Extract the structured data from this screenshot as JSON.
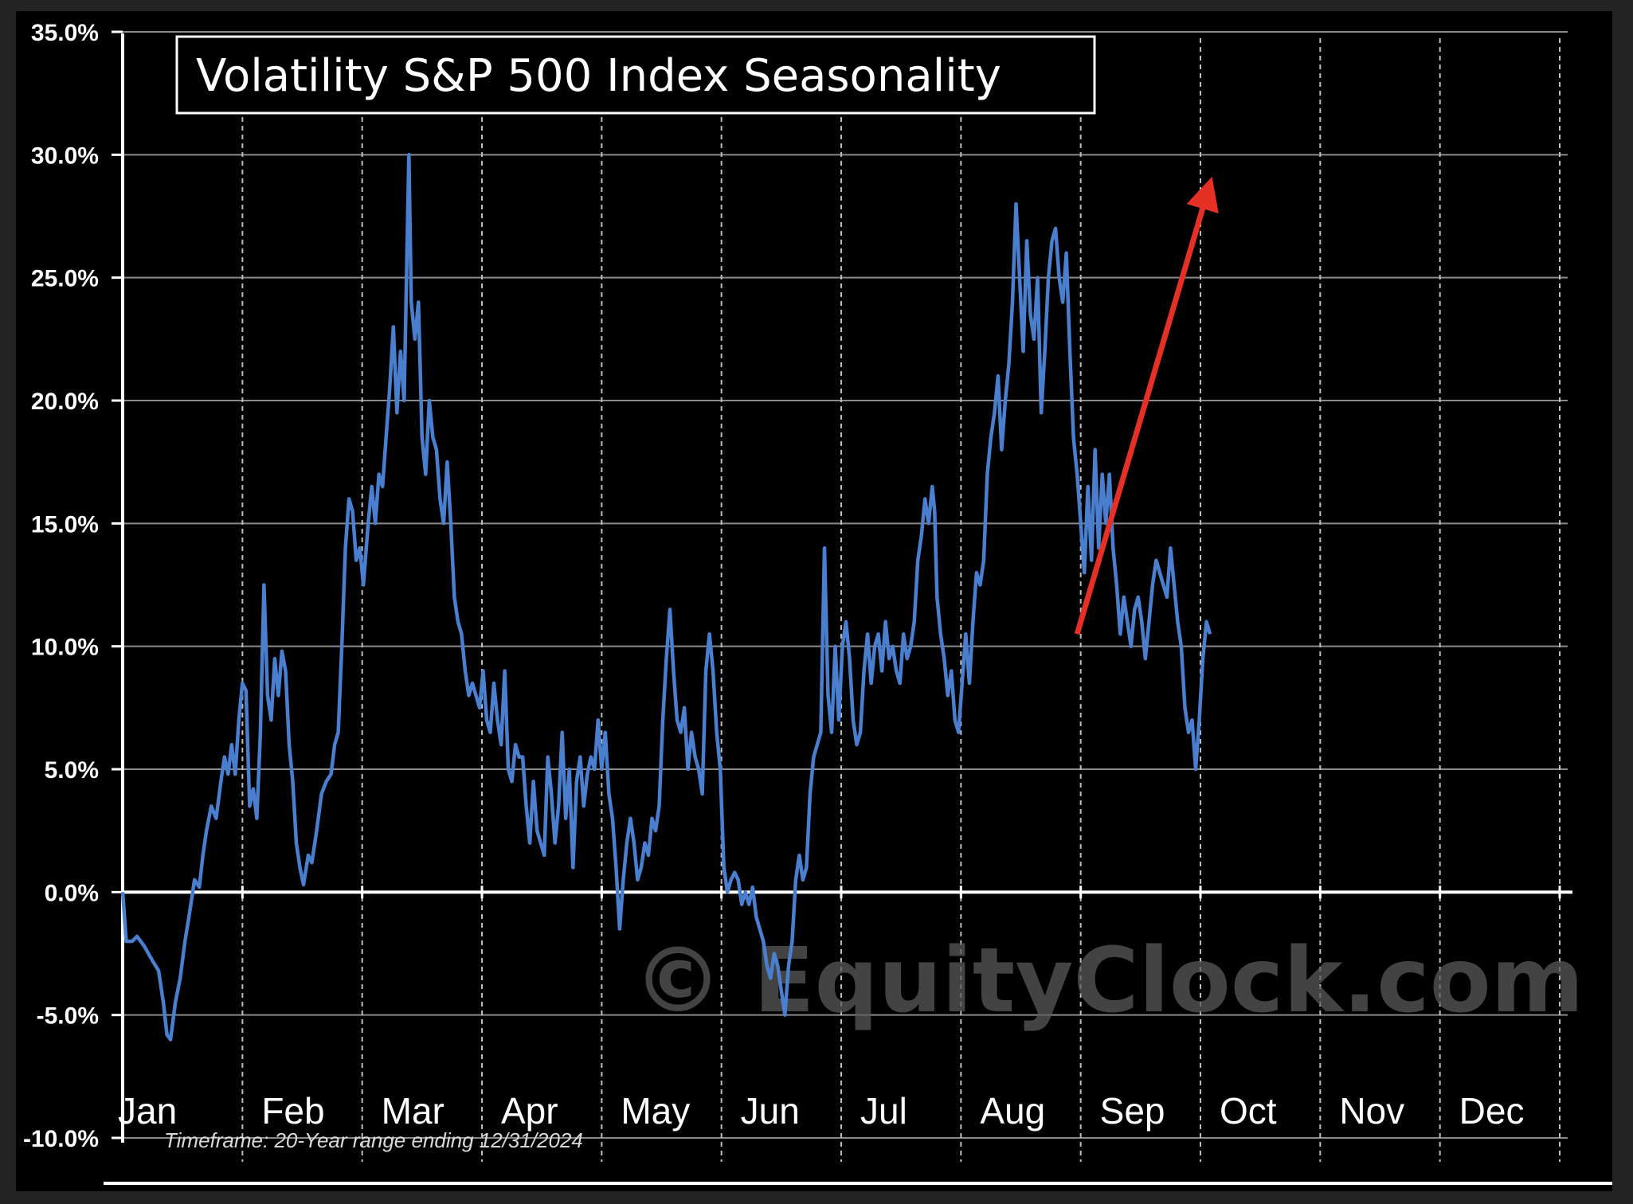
{
  "chart_data": {
    "type": "line",
    "title": "Volatility S&P 500 Index Seasonality",
    "footnote": "Timeframe: 20-Year range ending 12/31/2024",
    "watermark": "© EquityClock.com",
    "xlabel": "",
    "ylabel": "",
    "ylim": [
      -10,
      35
    ],
    "y_ticks": [
      35,
      30,
      25,
      20,
      15,
      10,
      5,
      0,
      -5,
      -10
    ],
    "y_tick_labels": [
      "35.0%",
      "30.0%",
      "25.0%",
      "20.0%",
      "15.0%",
      "10.0%",
      "5.0%",
      "0.0%",
      "-5.0%",
      "-10.0%"
    ],
    "months": [
      "Jan",
      "Feb",
      "Mar",
      "Apr",
      "May",
      "Jun",
      "Jul",
      "Aug",
      "Sep",
      "Oct",
      "Nov",
      "Dec"
    ],
    "x_range": [
      0,
      12
    ],
    "grid": {
      "horizontal": true,
      "vertical_month_dividers": true
    },
    "colors": {
      "line": "#4a7fd0",
      "arrow": "#e53026",
      "grid": "#9a9a9a",
      "background": "#000000"
    },
    "series": [
      {
        "points": [
          [
            0.0,
            0.0
          ],
          [
            0.03,
            -2.0
          ],
          [
            0.08,
            -2.0
          ],
          [
            0.12,
            -1.8
          ],
          [
            0.18,
            -2.2
          ],
          [
            0.25,
            -2.8
          ],
          [
            0.3,
            -3.2
          ],
          [
            0.34,
            -4.5
          ],
          [
            0.37,
            -5.8
          ],
          [
            0.4,
            -6.0
          ],
          [
            0.44,
            -4.5
          ],
          [
            0.48,
            -3.5
          ],
          [
            0.52,
            -2.0
          ],
          [
            0.56,
            -0.8
          ],
          [
            0.6,
            0.5
          ],
          [
            0.64,
            0.2
          ],
          [
            0.67,
            1.5
          ],
          [
            0.7,
            2.5
          ],
          [
            0.74,
            3.5
          ],
          [
            0.78,
            3.0
          ],
          [
            0.82,
            4.5
          ],
          [
            0.85,
            5.5
          ],
          [
            0.88,
            4.8
          ],
          [
            0.91,
            6.0
          ],
          [
            0.94,
            4.8
          ],
          [
            0.97,
            7.0
          ],
          [
            1.0,
            8.5
          ],
          [
            1.03,
            8.2
          ],
          [
            1.06,
            3.5
          ],
          [
            1.09,
            4.2
          ],
          [
            1.12,
            3.0
          ],
          [
            1.15,
            6.5
          ],
          [
            1.18,
            12.5
          ],
          [
            1.21,
            8.0
          ],
          [
            1.24,
            7.0
          ],
          [
            1.27,
            9.5
          ],
          [
            1.3,
            8.0
          ],
          [
            1.33,
            9.8
          ],
          [
            1.36,
            9.0
          ],
          [
            1.39,
            6.0
          ],
          [
            1.42,
            4.5
          ],
          [
            1.45,
            2.0
          ],
          [
            1.48,
            1.0
          ],
          [
            1.51,
            0.3
          ],
          [
            1.55,
            1.5
          ],
          [
            1.58,
            1.2
          ],
          [
            1.62,
            2.5
          ],
          [
            1.66,
            4.0
          ],
          [
            1.7,
            4.5
          ],
          [
            1.74,
            4.8
          ],
          [
            1.77,
            6.0
          ],
          [
            1.8,
            6.5
          ],
          [
            1.83,
            10.0
          ],
          [
            1.86,
            14.0
          ],
          [
            1.89,
            16.0
          ],
          [
            1.92,
            15.5
          ],
          [
            1.95,
            13.5
          ],
          [
            1.98,
            14.0
          ],
          [
            2.01,
            12.5
          ],
          [
            2.05,
            15.0
          ],
          [
            2.08,
            16.5
          ],
          [
            2.11,
            15.0
          ],
          [
            2.14,
            17.0
          ],
          [
            2.17,
            16.5
          ],
          [
            2.2,
            18.5
          ],
          [
            2.23,
            20.5
          ],
          [
            2.26,
            23.0
          ],
          [
            2.29,
            19.5
          ],
          [
            2.32,
            22.0
          ],
          [
            2.35,
            20.0
          ],
          [
            2.37,
            25.0
          ],
          [
            2.39,
            30.0
          ],
          [
            2.41,
            24.0
          ],
          [
            2.44,
            22.5
          ],
          [
            2.47,
            24.0
          ],
          [
            2.5,
            18.5
          ],
          [
            2.53,
            17.0
          ],
          [
            2.56,
            20.0
          ],
          [
            2.59,
            18.5
          ],
          [
            2.62,
            18.0
          ],
          [
            2.65,
            16.0
          ],
          [
            2.68,
            15.0
          ],
          [
            2.71,
            17.5
          ],
          [
            2.74,
            15.0
          ],
          [
            2.77,
            12.0
          ],
          [
            2.8,
            11.0
          ],
          [
            2.83,
            10.5
          ],
          [
            2.86,
            9.0
          ],
          [
            2.89,
            8.0
          ],
          [
            2.92,
            8.5
          ],
          [
            2.95,
            8.0
          ],
          [
            2.98,
            7.5
          ],
          [
            3.01,
            9.0
          ],
          [
            3.04,
            7.0
          ],
          [
            3.07,
            6.5
          ],
          [
            3.1,
            8.5
          ],
          [
            3.13,
            7.0
          ],
          [
            3.16,
            6.0
          ],
          [
            3.19,
            9.0
          ],
          [
            3.22,
            5.0
          ],
          [
            3.25,
            4.5
          ],
          [
            3.28,
            6.0
          ],
          [
            3.31,
            5.5
          ],
          [
            3.34,
            5.5
          ],
          [
            3.37,
            3.5
          ],
          [
            3.4,
            2.0
          ],
          [
            3.43,
            4.5
          ],
          [
            3.46,
            2.5
          ],
          [
            3.49,
            2.0
          ],
          [
            3.52,
            1.5
          ],
          [
            3.55,
            5.5
          ],
          [
            3.58,
            4.0
          ],
          [
            3.61,
            2.0
          ],
          [
            3.64,
            3.5
          ],
          [
            3.67,
            6.5
          ],
          [
            3.7,
            3.0
          ],
          [
            3.73,
            5.0
          ],
          [
            3.76,
            1.0
          ],
          [
            3.79,
            4.5
          ],
          [
            3.82,
            5.5
          ],
          [
            3.85,
            3.5
          ],
          [
            3.88,
            4.8
          ],
          [
            3.91,
            5.5
          ],
          [
            3.94,
            5.0
          ],
          [
            3.97,
            7.0
          ],
          [
            4.0,
            5.0
          ],
          [
            4.03,
            6.5
          ],
          [
            4.06,
            4.0
          ],
          [
            4.09,
            3.0
          ],
          [
            4.12,
            1.0
          ],
          [
            4.15,
            -1.5
          ],
          [
            4.18,
            0.5
          ],
          [
            4.21,
            2.0
          ],
          [
            4.24,
            3.0
          ],
          [
            4.27,
            2.0
          ],
          [
            4.3,
            0.5
          ],
          [
            4.33,
            1.0
          ],
          [
            4.36,
            2.0
          ],
          [
            4.39,
            1.5
          ],
          [
            4.42,
            3.0
          ],
          [
            4.45,
            2.5
          ],
          [
            4.48,
            3.5
          ],
          [
            4.51,
            7.0
          ],
          [
            4.54,
            9.5
          ],
          [
            4.57,
            11.5
          ],
          [
            4.6,
            9.0
          ],
          [
            4.63,
            7.0
          ],
          [
            4.66,
            6.5
          ],
          [
            4.69,
            7.5
          ],
          [
            4.72,
            5.0
          ],
          [
            4.75,
            6.5
          ],
          [
            4.78,
            5.5
          ],
          [
            4.81,
            5.0
          ],
          [
            4.84,
            4.0
          ],
          [
            4.87,
            9.0
          ],
          [
            4.9,
            10.5
          ],
          [
            4.93,
            9.0
          ],
          [
            4.96,
            6.5
          ],
          [
            4.99,
            5.0
          ],
          [
            5.02,
            1.0
          ],
          [
            5.05,
            0.0
          ],
          [
            5.08,
            0.5
          ],
          [
            5.11,
            0.8
          ],
          [
            5.14,
            0.5
          ],
          [
            5.17,
            -0.5
          ],
          [
            5.2,
            0.0
          ],
          [
            5.23,
            -0.5
          ],
          [
            5.26,
            0.2
          ],
          [
            5.29,
            -1.0
          ],
          [
            5.32,
            -1.5
          ],
          [
            5.35,
            -2.0
          ],
          [
            5.38,
            -3.0
          ],
          [
            5.41,
            -3.5
          ],
          [
            5.44,
            -2.5
          ],
          [
            5.47,
            -3.0
          ],
          [
            5.5,
            -4.0
          ],
          [
            5.53,
            -5.0
          ],
          [
            5.56,
            -3.0
          ],
          [
            5.59,
            -2.0
          ],
          [
            5.62,
            0.5
          ],
          [
            5.65,
            1.5
          ],
          [
            5.68,
            0.5
          ],
          [
            5.71,
            1.0
          ],
          [
            5.74,
            4.0
          ],
          [
            5.77,
            5.5
          ],
          [
            5.8,
            6.0
          ],
          [
            5.83,
            6.5
          ],
          [
            5.86,
            14.0
          ],
          [
            5.89,
            8.0
          ],
          [
            5.92,
            6.5
          ],
          [
            5.95,
            10.0
          ],
          [
            5.98,
            7.0
          ],
          [
            6.01,
            10.0
          ],
          [
            6.04,
            11.0
          ],
          [
            6.07,
            9.5
          ],
          [
            6.1,
            7.0
          ],
          [
            6.13,
            6.0
          ],
          [
            6.16,
            6.5
          ],
          [
            6.19,
            9.0
          ],
          [
            6.22,
            10.5
          ],
          [
            6.25,
            8.5
          ],
          [
            6.28,
            10.0
          ],
          [
            6.31,
            10.5
          ],
          [
            6.34,
            9.0
          ],
          [
            6.37,
            11.0
          ],
          [
            6.4,
            9.5
          ],
          [
            6.43,
            10.0
          ],
          [
            6.46,
            9.0
          ],
          [
            6.49,
            8.5
          ],
          [
            6.52,
            10.5
          ],
          [
            6.55,
            9.5
          ],
          [
            6.58,
            10.0
          ],
          [
            6.61,
            11.0
          ],
          [
            6.64,
            13.5
          ],
          [
            6.67,
            14.5
          ],
          [
            6.7,
            16.0
          ],
          [
            6.73,
            15.0
          ],
          [
            6.76,
            16.5
          ],
          [
            6.78,
            15.5
          ],
          [
            6.8,
            12.0
          ],
          [
            6.83,
            10.5
          ],
          [
            6.86,
            9.5
          ],
          [
            6.89,
            8.0
          ],
          [
            6.92,
            9.0
          ],
          [
            6.95,
            7.0
          ],
          [
            6.98,
            6.5
          ],
          [
            7.01,
            8.5
          ],
          [
            7.04,
            10.5
          ],
          [
            7.07,
            8.5
          ],
          [
            7.1,
            11.0
          ],
          [
            7.13,
            13.0
          ],
          [
            7.16,
            12.5
          ],
          [
            7.19,
            13.5
          ],
          [
            7.22,
            17.0
          ],
          [
            7.25,
            18.5
          ],
          [
            7.28,
            19.5
          ],
          [
            7.31,
            21.0
          ],
          [
            7.34,
            18.0
          ],
          [
            7.37,
            20.0
          ],
          [
            7.4,
            21.5
          ],
          [
            7.43,
            24.0
          ],
          [
            7.46,
            28.0
          ],
          [
            7.49,
            25.0
          ],
          [
            7.52,
            22.0
          ],
          [
            7.55,
            26.5
          ],
          [
            7.58,
            23.5
          ],
          [
            7.61,
            22.5
          ],
          [
            7.64,
            25.0
          ],
          [
            7.67,
            19.5
          ],
          [
            7.7,
            22.0
          ],
          [
            7.73,
            25.0
          ],
          [
            7.76,
            26.5
          ],
          [
            7.79,
            27.0
          ],
          [
            7.82,
            25.0
          ],
          [
            7.85,
            24.0
          ],
          [
            7.88,
            26.0
          ],
          [
            7.91,
            22.0
          ],
          [
            7.94,
            18.5
          ],
          [
            7.97,
            17.0
          ],
          [
            8.0,
            15.0
          ],
          [
            8.03,
            13.0
          ],
          [
            8.06,
            16.5
          ],
          [
            8.09,
            13.5
          ],
          [
            8.12,
            18.0
          ],
          [
            8.15,
            14.0
          ],
          [
            8.18,
            17.0
          ],
          [
            8.21,
            15.0
          ],
          [
            8.24,
            17.0
          ],
          [
            8.27,
            14.0
          ],
          [
            8.3,
            12.5
          ],
          [
            8.33,
            10.5
          ],
          [
            8.36,
            12.0
          ],
          [
            8.39,
            11.0
          ],
          [
            8.42,
            10.0
          ],
          [
            8.45,
            11.5
          ],
          [
            8.48,
            12.0
          ],
          [
            8.51,
            11.0
          ],
          [
            8.54,
            9.5
          ],
          [
            8.57,
            11.0
          ],
          [
            8.6,
            12.5
          ],
          [
            8.63,
            13.5
          ],
          [
            8.66,
            13.0
          ],
          [
            8.69,
            12.5
          ],
          [
            8.72,
            12.0
          ],
          [
            8.75,
            14.0
          ],
          [
            8.78,
            12.5
          ],
          [
            8.81,
            11.0
          ],
          [
            8.84,
            10.0
          ],
          [
            8.87,
            7.5
          ],
          [
            8.9,
            6.5
          ],
          [
            8.93,
            7.0
          ],
          [
            8.96,
            5.0
          ],
          [
            8.99,
            7.0
          ],
          [
            9.02,
            9.5
          ],
          [
            9.05,
            11.0
          ],
          [
            9.08,
            10.5
          ]
        ]
      }
    ],
    "annotation": {
      "type": "arrow",
      "from": [
        7.97,
        10.5
      ],
      "to": [
        9.06,
        28.5
      ]
    }
  }
}
